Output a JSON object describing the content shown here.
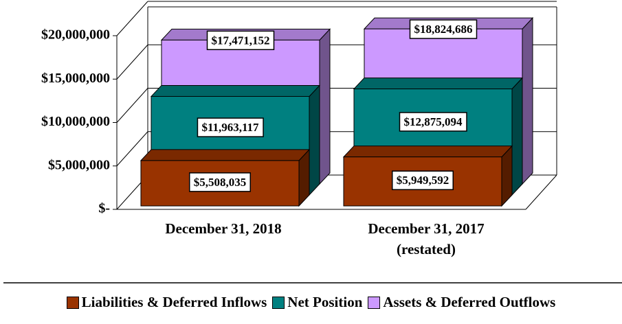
{
  "chart_data": {
    "type": "bar3d",
    "categories": [
      "December 31, 2018",
      "December 31, 2017 (restated)"
    ],
    "series": [
      {
        "name": "Liabilities & Deferred Inflows",
        "color": "#993300",
        "values": [
          5508035,
          5949592
        ],
        "value_labels": [
          "$5,508,035",
          "$5,949,592"
        ]
      },
      {
        "name": "Net Position",
        "color": "#008080",
        "values": [
          11963117,
          12875094
        ],
        "value_labels": [
          "$11,963,117",
          "$12,875,094"
        ]
      },
      {
        "name": "Assets & Deferred Outflows",
        "color": "#cc99ff",
        "values": [
          17471152,
          18824686
        ],
        "value_labels": [
          "$17,471,152",
          "$18,824,686"
        ]
      }
    ],
    "ylim": [
      0,
      20000000
    ],
    "yticks": [
      {
        "value": 0,
        "label": "$-"
      },
      {
        "value": 5000000,
        "label": "$5,000,000"
      },
      {
        "value": 10000000,
        "label": "$10,000,000"
      },
      {
        "value": 15000000,
        "label": "$15,000,000"
      },
      {
        "value": 20000000,
        "label": "$20,000,000"
      }
    ],
    "grid": true,
    "legend": "bottom"
  }
}
